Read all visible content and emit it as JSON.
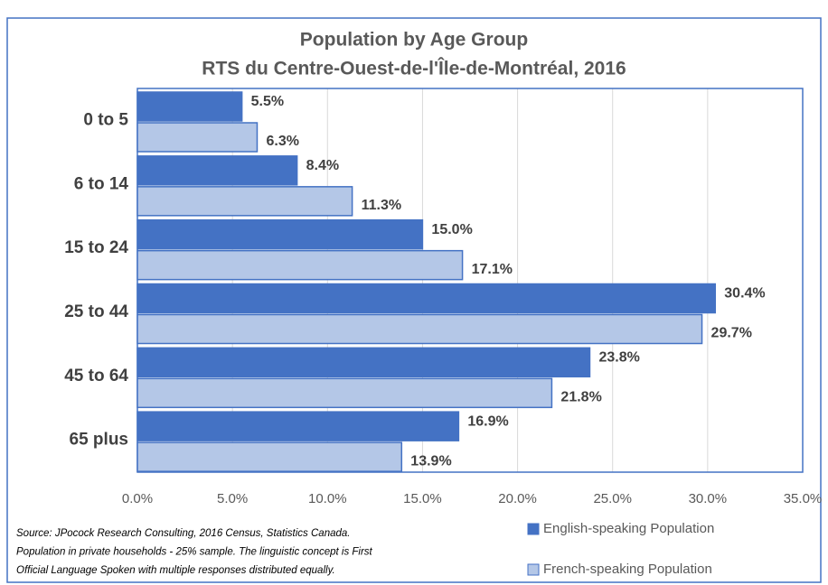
{
  "chart_data": {
    "type": "barh",
    "title": "Population by Age Group",
    "subtitle": "RTS du Centre-Ouest-de-l'Île-de-Montréal, 2016",
    "categories": [
      "0 to 5",
      "6 to 14",
      "15 to 24",
      "25 to 44",
      "45 to 64",
      "65 plus"
    ],
    "series": [
      {
        "name": "English-speaking Population",
        "color": "#4472c4",
        "values": [
          5.5,
          8.4,
          15.0,
          30.4,
          23.8,
          16.9
        ],
        "value_labels": [
          "5.5%",
          "8.4%",
          "15.0%",
          "30.4%",
          "23.8%",
          "16.9%"
        ]
      },
      {
        "name": "French-speaking Population",
        "color": "#b4c7e7",
        "values": [
          6.3,
          11.3,
          17.1,
          29.7,
          21.8,
          13.9
        ],
        "value_labels": [
          "6.3%",
          "11.3%",
          "17.1%",
          "29.7%",
          "21.8%",
          "13.9%"
        ]
      }
    ],
    "xlim": [
      0,
      35
    ],
    "xticks": [
      {
        "value": 0,
        "label": "0.0%"
      },
      {
        "value": 5,
        "label": "5.0%"
      },
      {
        "value": 10,
        "label": "10.0%"
      },
      {
        "value": 15,
        "label": "15.0%"
      },
      {
        "value": 20,
        "label": "20.0%"
      },
      {
        "value": 25,
        "label": "25.0%"
      },
      {
        "value": 30,
        "label": "30.0%"
      },
      {
        "value": 35,
        "label": "35.0%"
      }
    ],
    "grid": true,
    "legend": "bottom-right",
    "source": [
      "Source: JPocock Research Consulting, 2016 Census, Statistics Canada.",
      "Population in private households - 25% sample. The linguistic concept is First",
      "Official Language Spoken with multiple responses distributed equally."
    ]
  }
}
